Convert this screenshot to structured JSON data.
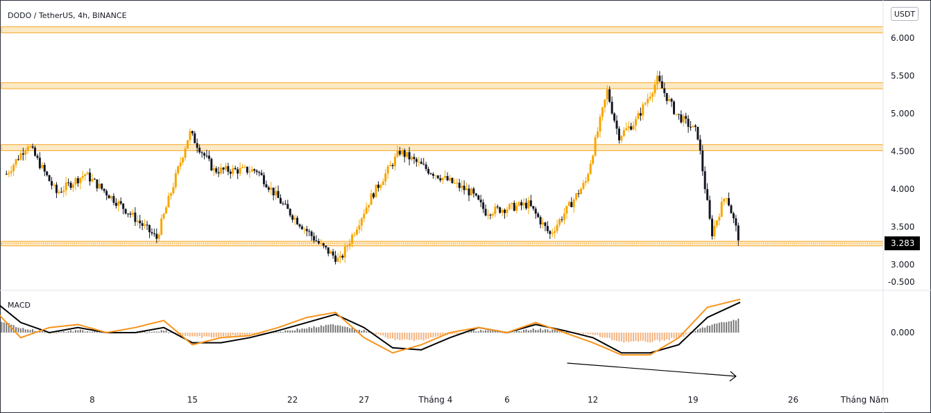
{
  "header": {
    "pair_label": "DODO / TetherUS, 4h, BINANCE",
    "currency": "USDT"
  },
  "macd": {
    "label": "MACD"
  },
  "colors": {
    "up": "#f7a600",
    "down": "#131722",
    "zone_fill": "#fde9c4",
    "zone_stroke": "#f5a623",
    "macd_line": "#000000",
    "signal_line": "#f7931a",
    "hist_up": "#f0a060",
    "hist_down": "#555555",
    "price_badge_bg": "#000000",
    "price_badge_text": "#ffffff"
  },
  "chart_data": [
    {
      "type": "candlestick",
      "title": "DODO / TetherUS, 4h, BINANCE",
      "ylim": [
        2.85,
        6.3
      ],
      "y_ticks": [
        "6.000",
        "5.500",
        "5.000",
        "4.500",
        "4.000",
        "3.500",
        "3.000"
      ],
      "y_tick_values": [
        6.0,
        5.5,
        5.0,
        4.5,
        4.0,
        3.5,
        3.0
      ],
      "x_ticks": [
        "8",
        "15",
        "22",
        "27",
        "Tháng 4",
        "6",
        "12",
        "19",
        "26",
        "Tháng Năm"
      ],
      "x_tick_values": [
        8,
        15,
        22,
        27,
        32,
        37,
        43,
        50,
        57,
        62
      ],
      "last_price": "3.283",
      "last_price_value": 3.283,
      "zones": [
        {
          "low": 6.07,
          "high": 6.15
        },
        {
          "low": 5.33,
          "high": 5.41
        },
        {
          "low": 4.51,
          "high": 4.59
        },
        {
          "low": 3.25,
          "high": 3.31
        }
      ],
      "key_points": [
        {
          "day": 2.0,
          "close": 4.2
        },
        {
          "day": 3.5,
          "close": 4.6
        },
        {
          "day": 5.5,
          "close": 3.95
        },
        {
          "day": 7.5,
          "close": 4.2
        },
        {
          "day": 10.5,
          "close": 3.7
        },
        {
          "day": 12.5,
          "close": 3.35
        },
        {
          "day": 14.8,
          "close": 4.75
        },
        {
          "day": 16.5,
          "close": 4.25
        },
        {
          "day": 19.5,
          "close": 4.25
        },
        {
          "day": 21.5,
          "close": 3.75
        },
        {
          "day": 24.0,
          "close": 3.25
        },
        {
          "day": 25.3,
          "close": 3.05
        },
        {
          "day": 27.5,
          "close": 3.9
        },
        {
          "day": 29.5,
          "close": 4.5
        },
        {
          "day": 31.5,
          "close": 4.25
        },
        {
          "day": 34.5,
          "close": 3.95
        },
        {
          "day": 35.5,
          "close": 3.7
        },
        {
          "day": 38.5,
          "close": 3.8
        },
        {
          "day": 40.0,
          "close": 3.4
        },
        {
          "day": 42.5,
          "close": 4.1
        },
        {
          "day": 44.0,
          "close": 5.3
        },
        {
          "day": 44.8,
          "close": 4.7
        },
        {
          "day": 46.0,
          "close": 4.9
        },
        {
          "day": 47.5,
          "close": 5.45
        },
        {
          "day": 48.8,
          "close": 5.0
        },
        {
          "day": 50.3,
          "close": 4.75
        },
        {
          "day": 51.3,
          "close": 3.4
        },
        {
          "day": 52.3,
          "close": 3.95
        },
        {
          "day": 53.3,
          "close": 3.28
        }
      ]
    },
    {
      "type": "line",
      "title": "MACD",
      "ylim": [
        -0.5,
        0.35
      ],
      "y_ticks": [
        "0.000",
        "-0.500"
      ],
      "y_tick_values": [
        0.0,
        -0.5
      ],
      "series": [
        {
          "color": "#000000",
          "x": [
            1,
            3,
            5,
            7,
            9,
            11,
            13,
            15,
            17,
            19,
            21,
            23,
            25,
            27,
            29,
            31,
            33,
            35,
            37,
            39,
            41,
            43,
            45,
            47,
            49,
            51,
            53.3
          ],
          "values": [
            -0.33,
            -0.1,
            0.0,
            -0.05,
            0.0,
            0.0,
            -0.05,
            0.1,
            0.1,
            0.05,
            -0.02,
            -0.1,
            -0.18,
            -0.05,
            0.15,
            0.17,
            0.05,
            -0.05,
            0.0,
            -0.08,
            -0.02,
            0.05,
            0.2,
            0.2,
            0.12,
            -0.15,
            -0.3
          ]
        },
        {
          "color": "#f7931a",
          "x": [
            1,
            3,
            5,
            7,
            9,
            11,
            13,
            15,
            17,
            19,
            21,
            23,
            25,
            27,
            29,
            31,
            33,
            35,
            37,
            39,
            41,
            43,
            45,
            47,
            49,
            51,
            53.3
          ],
          "values": [
            -0.25,
            0.05,
            -0.05,
            -0.08,
            0.0,
            -0.05,
            -0.12,
            0.12,
            0.05,
            0.03,
            -0.05,
            -0.15,
            -0.2,
            0.05,
            0.2,
            0.12,
            0.0,
            -0.05,
            0.0,
            -0.1,
            0.0,
            0.1,
            0.22,
            0.22,
            0.05,
            -0.25,
            -0.33
          ]
        }
      ]
    }
  ]
}
